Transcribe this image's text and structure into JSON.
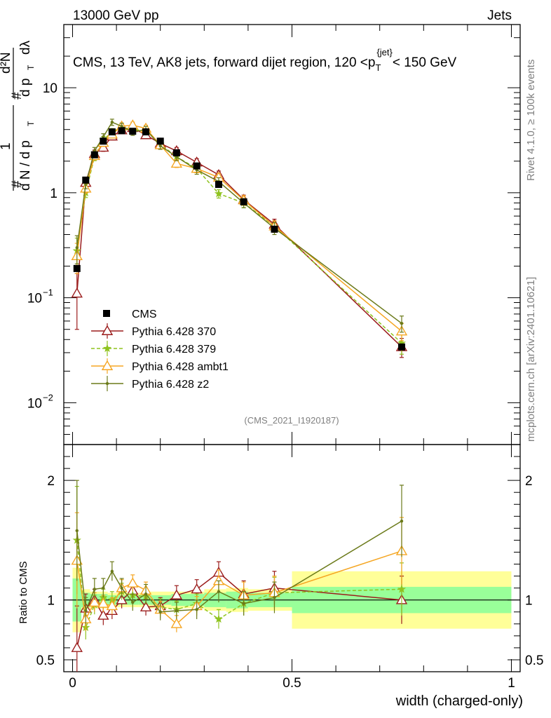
{
  "header": {
    "energy": "13000 GeV pp",
    "category": "Jets"
  },
  "side": {
    "rivet": "Rivet 4.1.0, ≥ 100k events",
    "mcplots": "mcplots.cern.ch [arXiv:2401.10621]"
  },
  "chart_data": {
    "type": "line",
    "title": "CMS, 13 TeV, AK8 jets, forward dijet region, 120 <p_T^{jet}< 150 GeV",
    "title_parts": {
      "prefix": "CMS, 13 TeV, AK8 jets, forward dijet region, 120 <p",
      "sub": "T",
      "sup": "{jet}",
      "suffix": "< 150 GeV"
    },
    "ylabel_parts": {
      "hash": "#",
      "one": "1",
      "dN": "d N / d p",
      "T": "T",
      "numer": "d²N",
      "denom": "d p",
      "dlambda": "dλ"
    },
    "xlabel": "width (charged-only)",
    "ratio_ylabel": "Ratio to CMS",
    "analysis_id": "(CMS_2021_I1920187)",
    "xlim": [
      -0.02,
      1.02
    ],
    "ylim": [
      0.004,
      40
    ],
    "ratio_ylim": [
      0.4,
      2.3
    ],
    "x_ticks": [
      "0",
      "0.5",
      "1"
    ],
    "x_tick_values": [
      0,
      0.5,
      1
    ],
    "y_ticks": [
      {
        "value": 0.01,
        "base": "10",
        "exp": "−2"
      },
      {
        "value": 0.1,
        "base": "10",
        "exp": "−1"
      },
      {
        "value": 1,
        "text": "1"
      },
      {
        "value": 10,
        "text": "10"
      }
    ],
    "ratio_ticks": [
      {
        "value": 0.5,
        "text": "0.5"
      },
      {
        "value": 1,
        "text": "1"
      },
      {
        "value": 2,
        "text": "2"
      }
    ],
    "bins": [
      [
        0,
        0.02
      ],
      [
        0.02,
        0.04
      ],
      [
        0.04,
        0.06
      ],
      [
        0.06,
        0.08
      ],
      [
        0.08,
        0.1
      ],
      [
        0.1,
        0.125
      ],
      [
        0.125,
        0.15
      ],
      [
        0.15,
        0.175
      ],
      [
        0.175,
        0.225
      ],
      [
        0.225,
        0.25
      ],
      [
        0.25,
        0.3
      ],
      [
        0.3,
        0.35
      ],
      [
        0.35,
        0.4
      ],
      [
        0.4,
        0.5
      ],
      [
        0.5,
        1.0
      ]
    ],
    "x": [
      0.01,
      0.03,
      0.05,
      0.07,
      0.09,
      0.112,
      0.137,
      0.167,
      0.2,
      0.237,
      0.283,
      0.333,
      0.39,
      0.46,
      0.75
    ],
    "data": {
      "name": "CMS",
      "values": [
        0.19,
        1.32,
        2.3,
        3.1,
        3.8,
        3.9,
        3.85,
        3.8,
        3.1,
        2.4,
        1.8,
        1.2,
        0.82,
        0.45,
        0.034
      ],
      "band_stat": [
        0.18,
        0.06,
        0.05,
        0.05,
        0.04,
        0.04,
        0.04,
        0.04,
        0.04,
        0.05,
        0.05,
        0.06,
        0.07,
        0.06,
        0.11
      ],
      "band_total": [
        0.27,
        0.09,
        0.07,
        0.07,
        0.06,
        0.06,
        0.06,
        0.06,
        0.07,
        0.07,
        0.07,
        0.09,
        0.1,
        0.09,
        0.24
      ]
    },
    "series": [
      {
        "name": "Pythia 6.428 370",
        "color": "#9b1c1c",
        "marker": "triangle-open",
        "values": [
          0.11,
          1.25,
          2.35,
          2.7,
          3.45,
          3.95,
          4.15,
          3.55,
          2.95,
          2.5,
          1.95,
          1.48,
          0.86,
          0.5,
          0.034
        ],
        "errors": [
          0.06,
          0.12,
          0.2,
          0.22,
          0.26,
          0.28,
          0.3,
          0.26,
          0.22,
          0.2,
          0.16,
          0.13,
          0.09,
          0.06,
          0.007
        ],
        "ratio": [
          0.6,
          0.93,
          1.0,
          0.87,
          0.91,
          1.0,
          1.08,
          0.94,
          0.95,
          1.04,
          1.09,
          1.23,
          1.05,
          1.1,
          1.0
        ],
        "ratio_err": [
          0.35,
          0.12,
          0.09,
          0.08,
          0.07,
          0.07,
          0.07,
          0.07,
          0.07,
          0.08,
          0.08,
          0.09,
          0.11,
          0.14,
          0.2
        ]
      },
      {
        "name": "Pythia 6.428 379",
        "color": "#8fc31f",
        "marker": "star",
        "dashed": true,
        "values": [
          0.28,
          1.0,
          2.2,
          3.2,
          3.8,
          4.2,
          4.0,
          3.9,
          2.9,
          2.2,
          1.7,
          0.98,
          0.8,
          0.48,
          0.037
        ],
        "errors": [
          0.09,
          0.1,
          0.18,
          0.24,
          0.28,
          0.3,
          0.28,
          0.28,
          0.22,
          0.18,
          0.15,
          0.09,
          0.08,
          0.06,
          0.008
        ],
        "ratio": [
          1.5,
          0.77,
          0.96,
          1.02,
          1.0,
          1.07,
          1.04,
          1.03,
          0.94,
          0.92,
          0.97,
          0.84,
          0.97,
          1.06,
          1.09
        ],
        "ratio_err": [
          0.45,
          0.1,
          0.08,
          0.07,
          0.07,
          0.07,
          0.07,
          0.07,
          0.07,
          0.07,
          0.08,
          0.08,
          0.1,
          0.13,
          0.22
        ]
      },
      {
        "name": "Pythia 6.428 ambt1",
        "color": "#f5a623",
        "marker": "triangle-open",
        "values": [
          0.25,
          1.1,
          2.25,
          3.0,
          3.6,
          4.3,
          4.4,
          4.1,
          2.85,
          1.9,
          1.7,
          1.4,
          0.85,
          0.48,
          0.048
        ],
        "errors": [
          0.08,
          0.11,
          0.19,
          0.23,
          0.27,
          0.3,
          0.31,
          0.29,
          0.22,
          0.16,
          0.15,
          0.12,
          0.09,
          0.06,
          0.009
        ],
        "ratio": [
          1.33,
          0.84,
          0.98,
          0.97,
          0.95,
          1.1,
          1.14,
          1.08,
          0.92,
          0.8,
          0.95,
          1.16,
          1.04,
          1.06,
          1.41
        ],
        "ratio_err": [
          0.4,
          0.1,
          0.08,
          0.07,
          0.07,
          0.07,
          0.07,
          0.07,
          0.07,
          0.07,
          0.08,
          0.09,
          0.11,
          0.14,
          0.28
        ]
      },
      {
        "name": "Pythia 6.428 z2",
        "color": "#6b7a1a",
        "marker": "dot",
        "values": [
          0.3,
          1.2,
          2.5,
          3.4,
          4.7,
          4.3,
          3.8,
          4.0,
          2.8,
          2.2,
          1.65,
          1.28,
          0.8,
          0.46,
          0.057
        ],
        "errors": [
          0.09,
          0.11,
          0.2,
          0.25,
          0.32,
          0.3,
          0.28,
          0.29,
          0.21,
          0.18,
          0.15,
          0.11,
          0.08,
          0.06,
          0.01
        ],
        "ratio": [
          1.58,
          0.91,
          1.09,
          1.1,
          1.24,
          1.1,
          0.98,
          1.05,
          0.9,
          0.91,
          0.92,
          1.07,
          0.97,
          1.02,
          1.66
        ],
        "ratio_err": [
          0.42,
          0.11,
          0.09,
          0.08,
          0.08,
          0.08,
          0.07,
          0.08,
          0.07,
          0.07,
          0.08,
          0.09,
          0.1,
          0.13,
          0.3
        ]
      }
    ]
  }
}
